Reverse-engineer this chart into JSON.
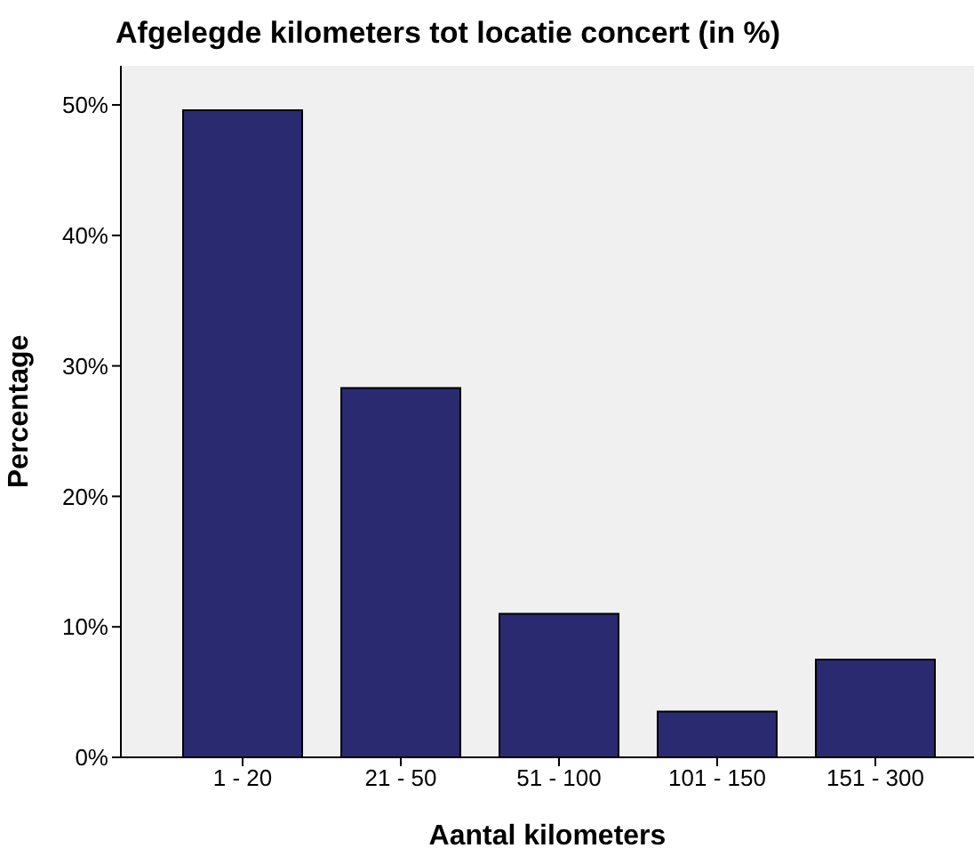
{
  "chart_data": {
    "type": "bar",
    "title": "Afgelegde kilometers tot locatie concert (in %)",
    "xlabel": "Aantal kilometers",
    "ylabel": "Percentage",
    "categories": [
      "1 - 20",
      "21 - 50",
      "51 - 100",
      "101 - 150",
      "151 - 300"
    ],
    "values": [
      49.6,
      28.3,
      11.0,
      3.5,
      7.5
    ],
    "color": "#292a70",
    "ylim": [
      0,
      53
    ],
    "yticks": [
      {
        "value": 0,
        "label": "0%"
      },
      {
        "value": 10,
        "label": "10%"
      },
      {
        "value": 20,
        "label": "20%"
      },
      {
        "value": 30,
        "label": "30%"
      },
      {
        "value": 40,
        "label": "40%"
      },
      {
        "value": 50,
        "label": "50%"
      }
    ]
  }
}
